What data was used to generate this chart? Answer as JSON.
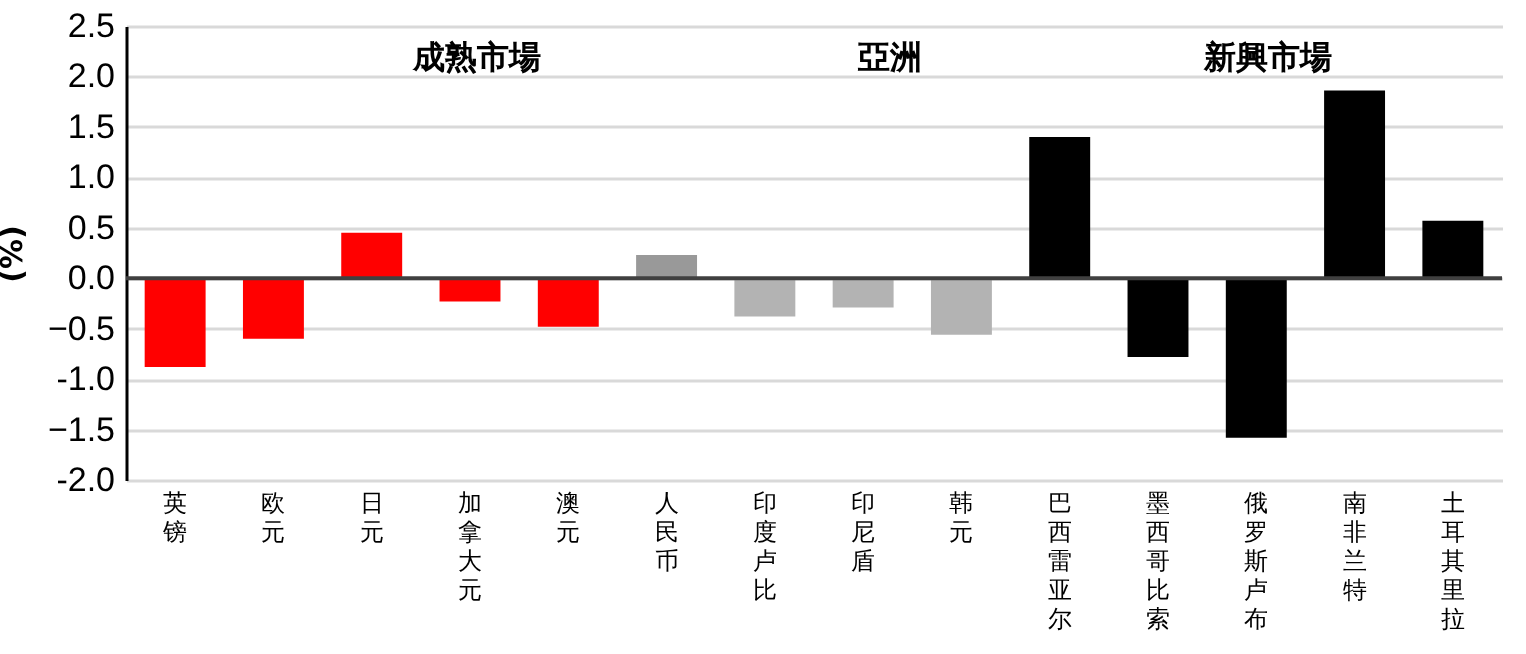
{
  "chart_data": {
    "type": "bar",
    "ylabel": "(%)",
    "annotations": [
      "成熟市場",
      "亞洲",
      "新興市場"
    ],
    "categories": [
      "英镑",
      "欧元",
      "日元",
      "加拿大元",
      "澳元",
      "人民币",
      "印度卢比",
      "印尼盾",
      "韩元",
      "巴西雷亚尔",
      "墨西哥比索",
      "俄罗斯卢布",
      "南非兰特",
      "土耳其里拉"
    ],
    "values": [
      -0.88,
      -0.6,
      0.45,
      -0.23,
      -0.48,
      0.23,
      -0.38,
      -0.29,
      -0.56,
      1.4,
      -0.78,
      -1.58,
      1.86,
      0.57
    ],
    "colors": [
      "#ff0000",
      "#ff0000",
      "#ff0000",
      "#ff0000",
      "#ff0000",
      "#999999",
      "#b3b3b3",
      "#b3b3b3",
      "#b3b3b3",
      "#000000",
      "#000000",
      "#000000",
      "#000000",
      "#000000"
    ],
    "ylim": [
      -2.0,
      2.5
    ],
    "yticks": [
      {
        "value": -2,
        "label": "-2.0"
      },
      -1.5,
      {
        "value": -1,
        "label": "-1.0"
      },
      -0.5,
      {
        "value": 0,
        "label": "0.0"
      },
      0.5,
      {
        "value": 1,
        "label": "1.0"
      },
      1.5,
      {
        "value": 2,
        "label": "2.0"
      },
      2.5
    ],
    "ref_lines": [
      {
        "axis": "y",
        "value": 0,
        "color": "#404040"
      }
    ],
    "grid": "y"
  }
}
